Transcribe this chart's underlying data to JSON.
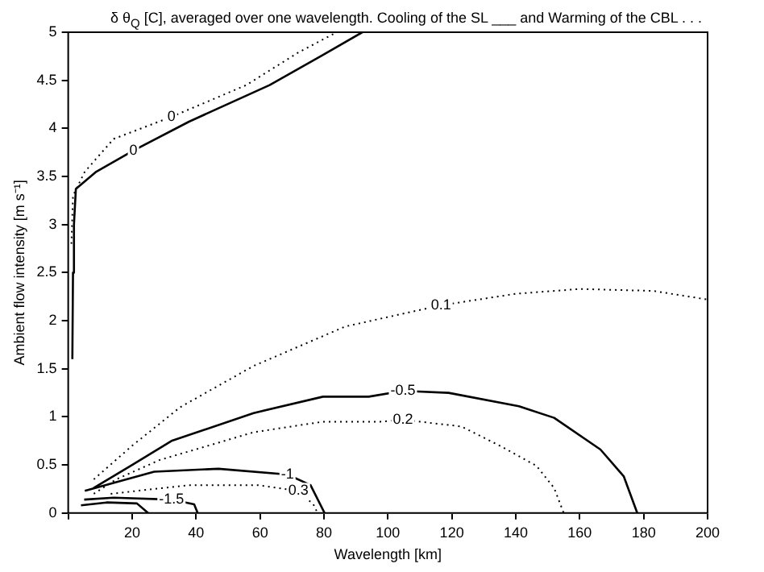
{
  "chart_data": {
    "type": "line",
    "title": "δ θ$_{Q}$  [C], averaged over one wavelength. Cooling of the SL ___ and Warming of the CBL . . .",
    "xlabel": "Wavelength [km]",
    "ylabel": "Ambient flow intensity [m s⁻¹]",
    "series": [
      {
        "name": "0",
        "color": "#000000",
        "line_style": "solid",
        "x": [
          1.3,
          1.5,
          1.8,
          2.4,
          8.8,
          20.4,
          37.8,
          63,
          79.5,
          92
        ],
        "values": [
          1.6,
          2.5,
          3.0,
          3.37,
          3.55,
          3.77,
          4.07,
          4.45,
          4.76,
          5.0
        ]
      },
      {
        "name": "0",
        "color": "#000000",
        "line_style": "dotted",
        "x": [
          1.0,
          1.5,
          5.2,
          14.2,
          32.3,
          55.7,
          72,
          84
        ],
        "values": [
          2.8,
          3.3,
          3.55,
          3.89,
          4.12,
          4.45,
          4.79,
          5.0
        ]
      },
      {
        "name": "0.1",
        "color": "#000000",
        "line_style": "dotted",
        "x": [
          8,
          20,
          35,
          58,
          86.7,
          116.6,
          140,
          160,
          183,
          200
        ],
        "values": [
          0.35,
          0.7,
          1.1,
          1.53,
          1.94,
          2.16,
          2.28,
          2.33,
          2.31,
          2.22
        ]
      },
      {
        "name": "-0.5",
        "color": "#000000",
        "line_style": "solid",
        "x": [
          7.9,
          20,
          32.3,
          58,
          79.7,
          94,
          104.7,
          119,
          141,
          152,
          166.5,
          173.8,
          178
        ],
        "values": [
          0.26,
          0.5,
          0.75,
          1.04,
          1.21,
          1.21,
          1.27,
          1.25,
          1.11,
          0.99,
          0.66,
          0.38,
          0
        ]
      },
      {
        "name": "0.2",
        "color": "#000000",
        "line_style": "dotted",
        "x": [
          8,
          15,
          28.5,
          58,
          79.7,
          97.6,
          104.7,
          123,
          135.6,
          146.5,
          152,
          155
        ],
        "values": [
          0.2,
          0.35,
          0.55,
          0.84,
          0.95,
          0.95,
          0.97,
          0.9,
          0.69,
          0.49,
          0.26,
          0
        ]
      },
      {
        "name": "-1",
        "color": "#000000",
        "line_style": "solid",
        "x": [
          5.2,
          26.9,
          47,
          68.6,
          75.8,
          80.2
        ],
        "values": [
          0.23,
          0.43,
          0.46,
          0.4,
          0.29,
          0
        ]
      },
      {
        "name": "0.3",
        "color": "#000000",
        "line_style": "dotted",
        "x": [
          13.3,
          37.8,
          59.5,
          72,
          76.7,
          78
        ],
        "values": [
          0.2,
          0.29,
          0.29,
          0.23,
          0.09,
          0
        ]
      },
      {
        "name": "-1.5",
        "color": "#000000",
        "line_style": "solid",
        "x": [
          5,
          14.2,
          32.3,
          39.4,
          40.5
        ],
        "values": [
          0.14,
          0.16,
          0.14,
          0.09,
          0
        ]
      },
      {
        "color": "#000000",
        "line_style": "solid",
        "x": [
          4,
          12,
          21.5,
          25
        ],
        "values": [
          0.08,
          0.11,
          0.1,
          0
        ]
      }
    ],
    "xlim": [
      0,
      200
    ],
    "xticks": [
      {
        "value": 0,
        "label": null
      },
      20,
      40,
      60,
      80,
      100,
      120,
      140,
      160,
      180,
      200
    ],
    "ylim": [
      0,
      5
    ],
    "yticks": [
      0,
      0.5,
      1,
      1.5,
      2,
      2.5,
      3,
      3.5,
      4,
      4.5,
      5
    ],
    "grid": false,
    "legend": false,
    "marker": "none"
  }
}
